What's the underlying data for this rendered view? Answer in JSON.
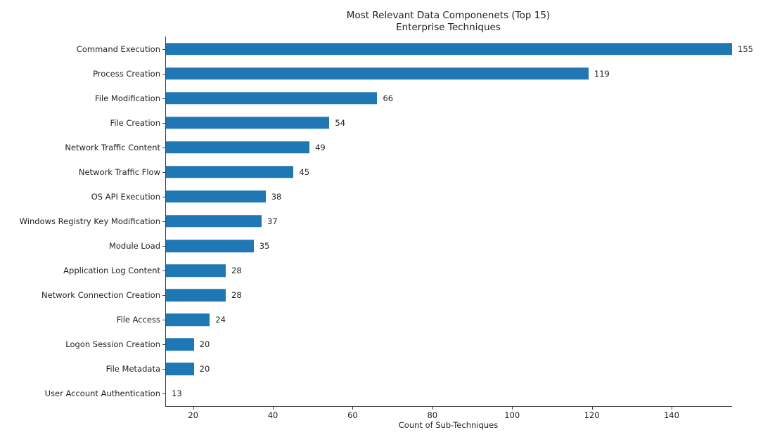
{
  "chart_data": {
    "type": "bar",
    "orientation": "horizontal",
    "title": "Most Relevant Data Componenets (Top 15)",
    "subtitle": "Enterprise Techniques",
    "xlabel": "Count of Sub-Techniques",
    "categories": [
      "Command Execution",
      "Process Creation",
      "File Modification",
      "File Creation",
      "Network Traffic Content",
      "Network Traffic Flow",
      "OS API Execution",
      "Windows Registry Key Modification",
      "Module Load",
      "Application Log Content",
      "Network Connection Creation",
      "File Access",
      "Logon Session Creation",
      "File Metadata",
      "User Account Authentication"
    ],
    "values": [
      155,
      119,
      66,
      54,
      49,
      45,
      38,
      37,
      35,
      28,
      28,
      24,
      20,
      20,
      13
    ],
    "xlim": [
      13,
      155
    ],
    "xticks": [
      20,
      40,
      60,
      80,
      100,
      120,
      140
    ],
    "bar_color": "#1f77b4",
    "axis_color": "#3f3f3f",
    "grid": false,
    "legend_position": "none",
    "value_labels_shown": true
  }
}
